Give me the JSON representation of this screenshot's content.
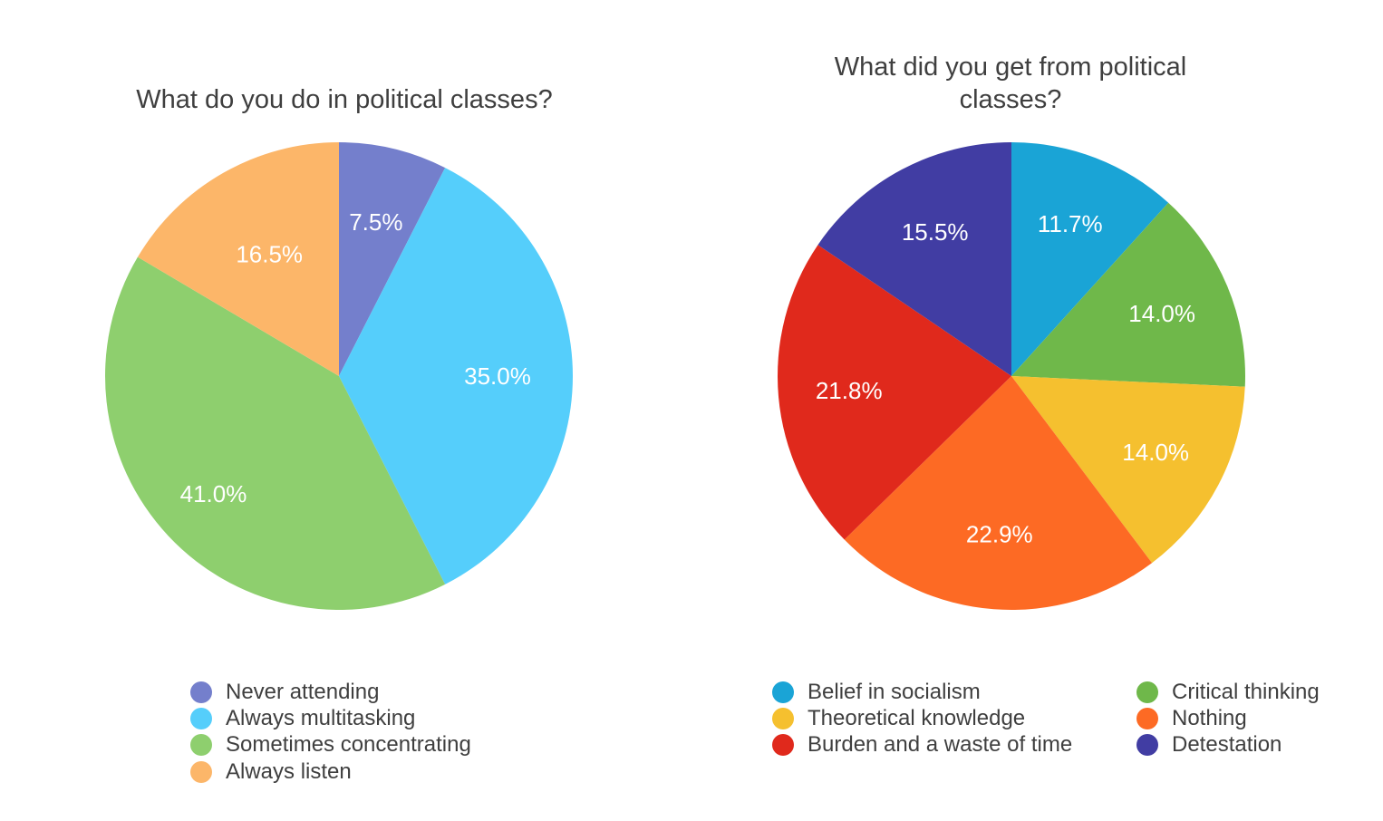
{
  "chart_data": [
    {
      "type": "pie",
      "title": "What do you do in political classes?",
      "slices": [
        {
          "label": "Never attending",
          "value": 7.5,
          "value_label": "7.5%",
          "color": "#747fcc"
        },
        {
          "label": "Always multitasking",
          "value": 35.0,
          "value_label": "35.0%",
          "color": "#55cefb"
        },
        {
          "label": "Sometimes concentrating",
          "value": 41.0,
          "value_label": "41.0%",
          "color": "#8ecf6e"
        },
        {
          "label": "Always listen",
          "value": 16.5,
          "value_label": "16.5%",
          "color": "#fcb669"
        }
      ],
      "legend_position": "bottom"
    },
    {
      "type": "pie",
      "title": "What did you get from political classes?",
      "slices": [
        {
          "label": "Belief in socialism",
          "value": 11.7,
          "value_label": "11.7%",
          "color": "#1aa4d6"
        },
        {
          "label": "Critical thinking",
          "value": 14.0,
          "value_label": "14.0%",
          "color": "#6fb84a"
        },
        {
          "label": "Theoretical knowledge",
          "value": 14.0,
          "value_label": "14.0%",
          "color": "#f5c02f"
        },
        {
          "label": "Nothing",
          "value": 22.9,
          "value_label": "22.9%",
          "color": "#fd6a24"
        },
        {
          "label": "Burden and a waste of time",
          "value": 21.8,
          "value_label": "21.8%",
          "color": "#e0291c"
        },
        {
          "label": "Detestation",
          "value": 15.5,
          "value_label": "15.5%",
          "color": "#413da3"
        }
      ],
      "legend_position": "bottom"
    }
  ]
}
